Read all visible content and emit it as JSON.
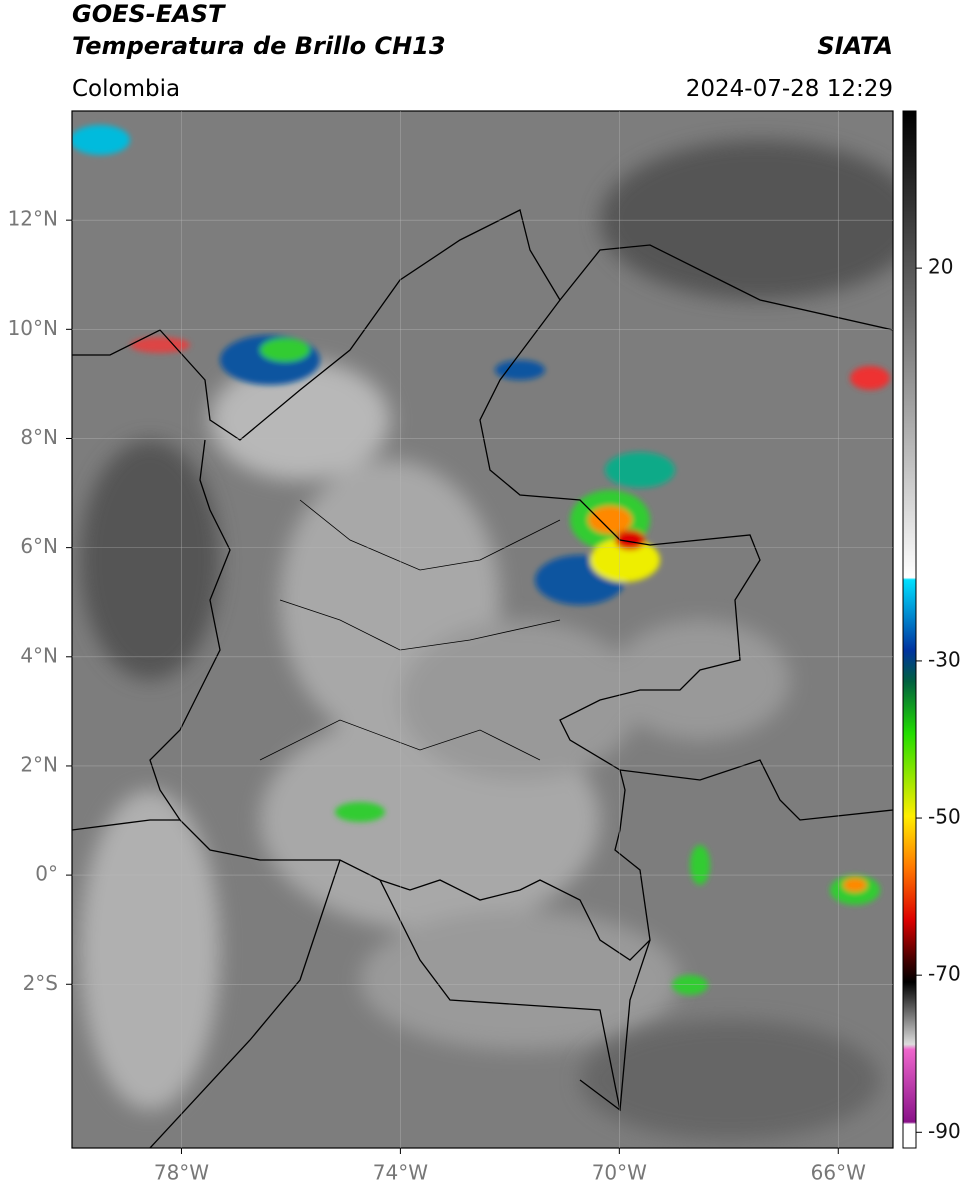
{
  "map": {
    "title": "GOES-EAST",
    "subtitle": "Temperatura de Brillo CH13",
    "source": "SIATA",
    "region": "Colombia",
    "datetime": "2024-07-28 12:29",
    "xlim": [
      -80,
      -65
    ],
    "ylim": [
      -5,
      14
    ],
    "xticks": [
      {
        "value": -78,
        "label": "78°W"
      },
      {
        "value": -74,
        "label": "74°W"
      },
      {
        "value": -70,
        "label": "70°W"
      },
      {
        "value": -66,
        "label": "66°W"
      }
    ],
    "yticks": [
      {
        "value": 12,
        "label": "12°N"
      },
      {
        "value": 10,
        "label": "10°N"
      },
      {
        "value": 8,
        "label": "8°N"
      },
      {
        "value": 6,
        "label": "6°N"
      },
      {
        "value": 4,
        "label": "4°N"
      },
      {
        "value": 2,
        "label": "2°N"
      },
      {
        "value": 0,
        "label": "0°"
      },
      {
        "value": -2,
        "label": "2°S"
      }
    ],
    "grid": true,
    "colorbar": {
      "clim": [
        -92,
        40
      ],
      "ticks": [
        20,
        -30,
        -50,
        -70,
        -90
      ]
    }
  }
}
